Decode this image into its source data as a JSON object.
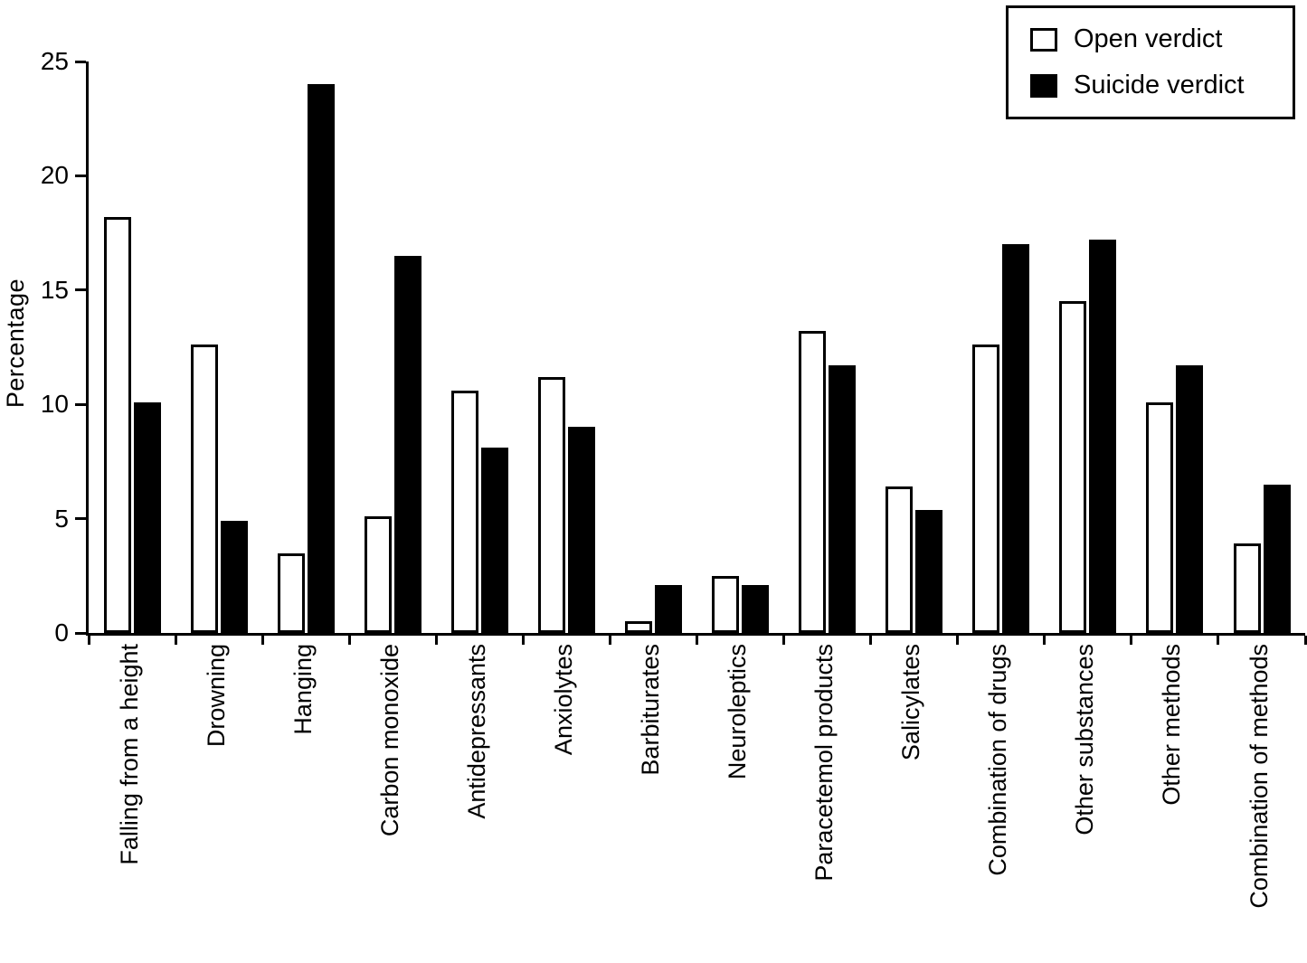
{
  "colors": {
    "open_fill": "#ffffff",
    "suicide_fill": "#000000",
    "axis": "#000000",
    "background": "#ffffff"
  },
  "legend": {
    "items": [
      {
        "label": "Open verdict",
        "swatch": "open-white-square"
      },
      {
        "label": "Suicide verdict",
        "swatch": "filled-black-square"
      }
    ],
    "position": "top-right",
    "border": true
  },
  "chart_data": {
    "type": "bar",
    "title": "",
    "xlabel": "",
    "ylabel": "Percentage",
    "ylim": [
      0,
      25
    ],
    "yticks": [
      0,
      5,
      10,
      15,
      20,
      25
    ],
    "grid": false,
    "legend_position": "top-right",
    "categories": [
      "Falling from a height",
      "Drowning",
      "Hanging",
      "Carbon monoxide",
      "Antidepressants",
      "Anxiolytes",
      "Barbiturates",
      "Neuroleptics",
      "Paracetemol products",
      "Salicylates",
      "Combination of drugs",
      "Other substances",
      "Other methods",
      "Combination of methods"
    ],
    "series": [
      {
        "name": "Open verdict",
        "fill": "white",
        "values": [
          18.2,
          12.6,
          3.5,
          5.1,
          10.6,
          11.2,
          0.5,
          2.5,
          13.2,
          6.4,
          12.6,
          14.5,
          10.1,
          3.9
        ]
      },
      {
        "name": "Suicide verdict",
        "fill": "black",
        "values": [
          10.1,
          4.9,
          24.0,
          16.5,
          8.1,
          9.0,
          2.1,
          2.1,
          11.7,
          5.4,
          17.0,
          17.2,
          11.7,
          6.5
        ]
      }
    ]
  }
}
